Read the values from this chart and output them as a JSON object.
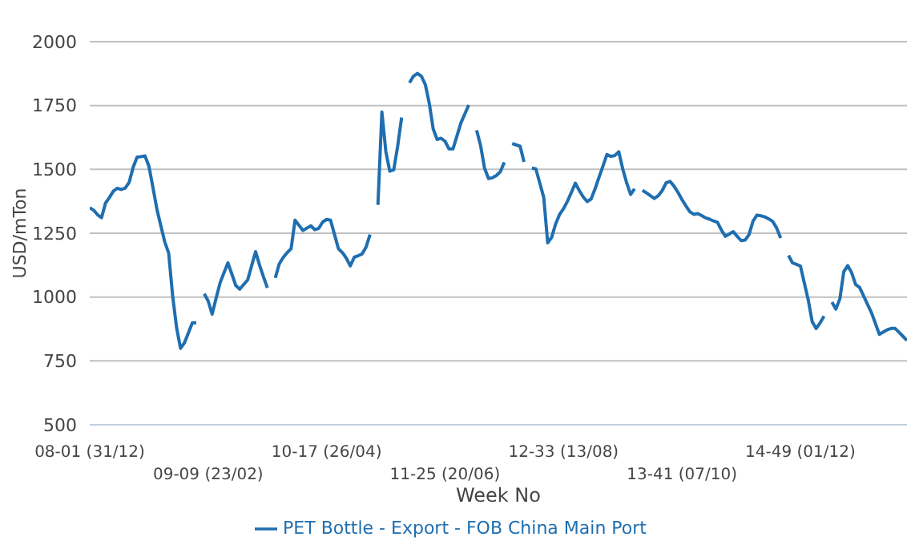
{
  "chart_data": {
    "type": "line",
    "xlabel": "Week No",
    "ylabel": "USD/mTon",
    "categories": [
      "08-01 (31/12)",
      null,
      null,
      null,
      null,
      null,
      null,
      null,
      null,
      null,
      null,
      null,
      null,
      null,
      null,
      null,
      null,
      null,
      null,
      null,
      null,
      null,
      null,
      null,
      null,
      null,
      null,
      null,
      null,
      null,
      "09-09 (23/02)",
      null,
      null,
      null,
      null,
      null,
      null,
      null,
      null,
      null,
      null,
      null,
      null,
      null,
      null,
      null,
      null,
      null,
      null,
      null,
      null,
      null,
      null,
      null,
      null,
      null,
      null,
      null,
      null,
      null,
      "10-17 (26/04)",
      null,
      null,
      null,
      null,
      null,
      null,
      null,
      null,
      null,
      null,
      null,
      null,
      null,
      null,
      null,
      null,
      null,
      null,
      null,
      null,
      null,
      null,
      null,
      null,
      null,
      null,
      null,
      null,
      null,
      "11-25 (20/06)",
      null,
      null,
      null,
      null,
      null,
      null,
      null,
      null,
      null,
      null,
      null,
      null,
      null,
      null,
      null,
      null,
      null,
      null,
      null,
      null,
      null,
      null,
      null,
      null,
      null,
      null,
      null,
      null,
      null,
      "12-33 (13/08)",
      null,
      null,
      null,
      null,
      null,
      null,
      null,
      null,
      null,
      null,
      null,
      null,
      null,
      null,
      null,
      null,
      null,
      null,
      null,
      null,
      null,
      null,
      null,
      null,
      null,
      null,
      null,
      null,
      null,
      "13-41 (07/10)",
      null,
      null,
      null,
      null,
      null,
      null,
      null,
      null,
      null,
      null,
      null,
      null,
      null,
      null,
      null,
      null,
      null,
      null,
      null,
      null,
      null,
      null,
      null,
      null,
      null,
      null,
      null,
      null,
      null,
      "14-49 (01/12)",
      null,
      null,
      null,
      null,
      null,
      null,
      null,
      null,
      null,
      null,
      null,
      null,
      null,
      null,
      null,
      null,
      null,
      null,
      null,
      null,
      null,
      null,
      null,
      null,
      null,
      null,
      null
    ],
    "series": [
      {
        "name": "PET Bottle - Export - FOB China Main Port",
        "color": "#1f6eb0",
        "values": [
          1350,
          1340,
          1322,
          1311,
          1368,
          1390,
          1415,
          1426,
          1421,
          1427,
          1450,
          1508,
          1548,
          1550,
          1553,
          1512,
          1430,
          1345,
          1280,
          1216,
          1172,
          1005,
          880,
          799,
          821,
          860,
          899,
          899,
          null,
          1013,
          985,
          933,
          995,
          1055,
          1095,
          1134,
          1090,
          1045,
          1031,
          1049,
          1067,
          1122,
          1178,
          1126,
          1079,
          1036,
          null,
          1075,
          1130,
          1155,
          1174,
          1189,
          1301,
          1281,
          1261,
          1270,
          1279,
          1264,
          1269,
          1294,
          1304,
          1301,
          1245,
          1189,
          1174,
          1152,
          1122,
          1156,
          1162,
          1169,
          1196,
          1245,
          null,
          1361,
          1725,
          1570,
          1493,
          1498,
          1591,
          1703,
          null,
          1839,
          1865,
          1876,
          1865,
          1832,
          1759,
          1658,
          1617,
          1622,
          1610,
          1580,
          1580,
          1630,
          1681,
          1717,
          1752,
          null,
          1653,
          1593,
          1505,
          1464,
          1467,
          1476,
          1491,
          1528,
          null,
          1601,
          1596,
          1591,
          1529,
          null,
          1505,
          1502,
          1446,
          1390,
          1212,
          1234,
          1286,
          1323,
          1346,
          1375,
          1410,
          1446,
          1417,
          1392,
          1374,
          1384,
          1424,
          1469,
          1513,
          1558,
          1551,
          1554,
          1569,
          1502,
          1447,
          1402,
          1424,
          null,
          1418,
          1408,
          1397,
          1386,
          1397,
          1417,
          1447,
          1453,
          1434,
          1410,
          1382,
          1357,
          1334,
          1324,
          1327,
          1319,
          1310,
          1305,
          1298,
          1293,
          1262,
          1238,
          1247,
          1256,
          1238,
          1221,
          1223,
          1245,
          1297,
          1321,
          1318,
          1314,
          1306,
          1296,
          1270,
          1231,
          null,
          1163,
          1134,
          1128,
          1122,
          1055,
          988,
          903,
          877,
          899,
          925,
          null,
          980,
          953,
          993,
          1100,
          1123,
          1095,
          1049,
          1038,
          1005,
          972,
          939,
          897,
          854,
          863,
          872,
          877,
          877,
          862,
          846,
          830
        ]
      }
    ],
    "ylim": [
      500,
      2000
    ],
    "yticks": [
      500,
      750,
      1000,
      1250,
      1500,
      1750,
      2000
    ],
    "grid": "y",
    "legend": "bottom",
    "marker": "none",
    "line_style": "solid"
  }
}
